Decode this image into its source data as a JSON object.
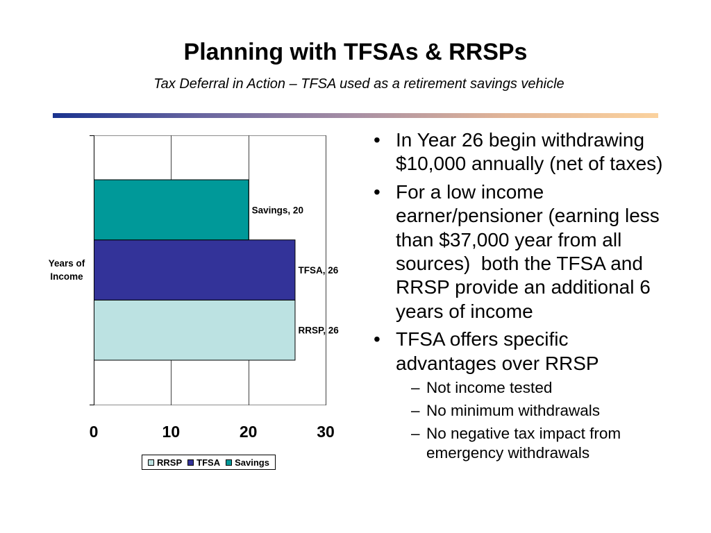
{
  "slide": {
    "title": "Planning with TFSAs & RRSPs",
    "subtitle": "Tax Deferral in Action – TFSA used as a retirement savings vehicle",
    "accent_gradient": [
      "#1a338f",
      "#6a66a0",
      "#a88fa4",
      "#e2b597",
      "#fbd29e"
    ]
  },
  "bullet_symbols": {
    "main": "•",
    "sub": "–"
  },
  "bullets": [
    {
      "text": "In Year 26 begin withdrawing $10,000 annually (net of taxes)"
    },
    {
      "text": "For a low income earner/pensioner (earning less than $37,000 year from all sources)  both the TFSA and RRSP provide an additional 6 years of income"
    },
    {
      "text": "TFSA offers specific advantages over RRSP",
      "sub": [
        "Not income tested",
        "No minimum withdrawals",
        "No negative tax impact from emergency withdrawals"
      ]
    }
  ],
  "chart_data": {
    "type": "bar",
    "orientation": "horizontal",
    "categories": [
      "Years of Income"
    ],
    "series": [
      {
        "name": "RRSP",
        "values": [
          26
        ],
        "color": "#BCE2E2"
      },
      {
        "name": "TFSA",
        "values": [
          26
        ],
        "color": "#333399"
      },
      {
        "name": "Savings",
        "values": [
          20
        ],
        "color": "#009999"
      }
    ],
    "xlim": [
      0,
      30
    ],
    "xticks": [
      0,
      10,
      20,
      30
    ],
    "grid": "vertical",
    "data_labels_shown": true,
    "legend": "bottom"
  }
}
